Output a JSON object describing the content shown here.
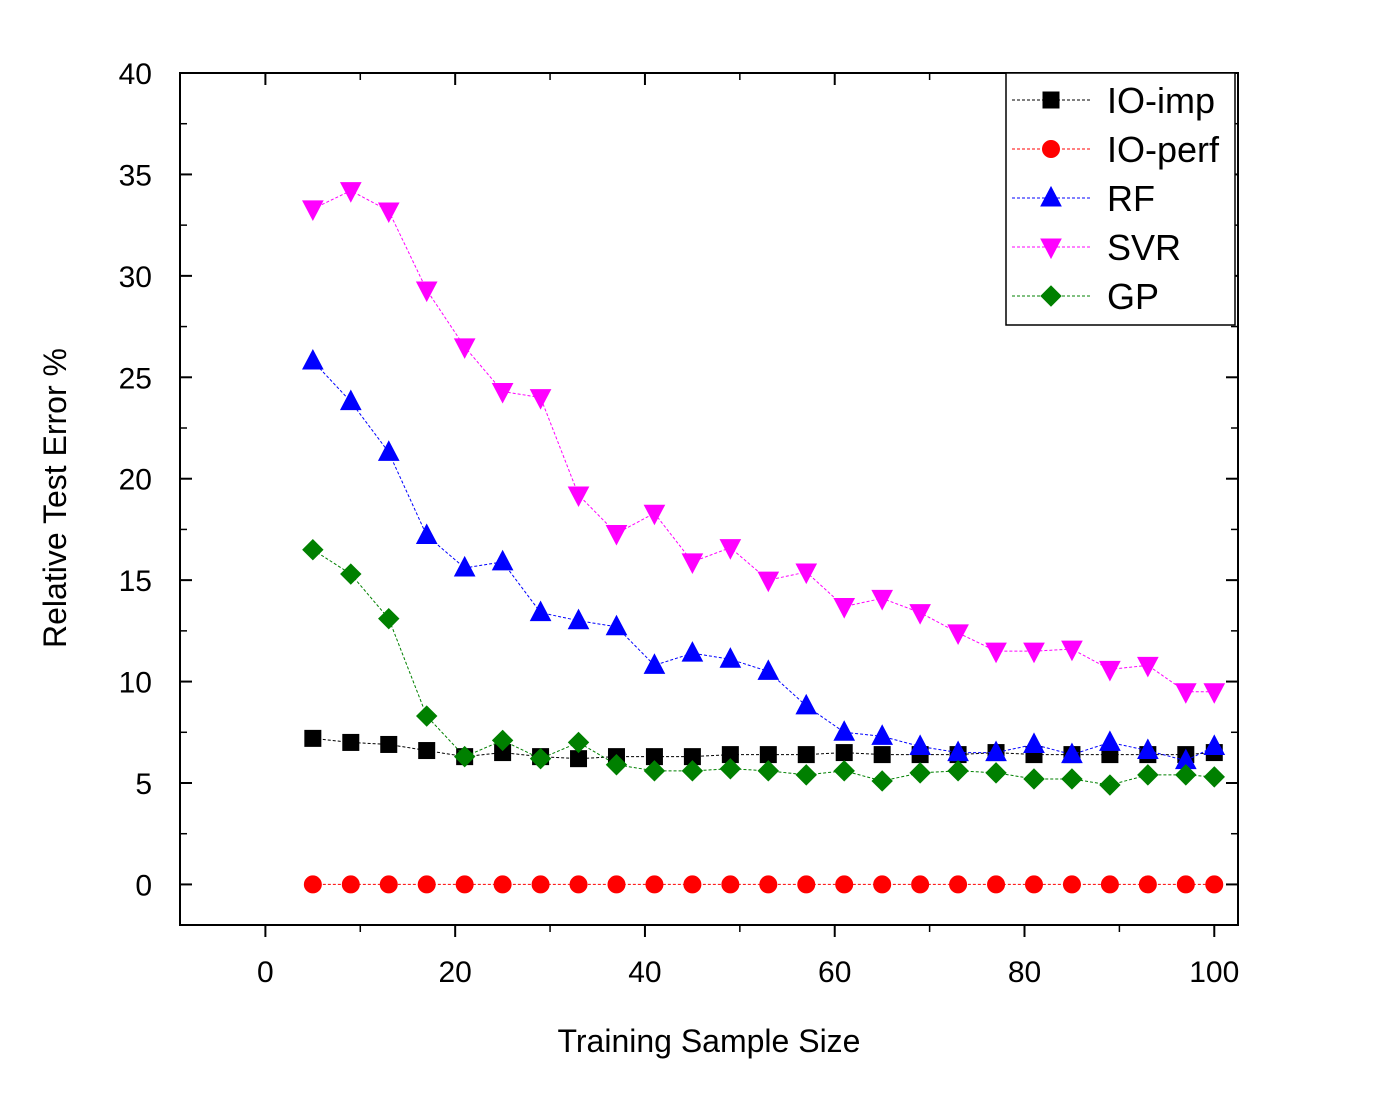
{
  "chart_data": {
    "type": "line",
    "title": "",
    "xlabel": "Training Sample Size",
    "ylabel": "Relative Test Error %",
    "xlim": [
      -9,
      102.5
    ],
    "ylim": [
      -2,
      40
    ],
    "xticks": [
      0,
      20,
      40,
      60,
      80,
      100
    ],
    "yticks": [
      0,
      5,
      10,
      15,
      20,
      25,
      30,
      35,
      40
    ],
    "x": [
      5,
      9,
      13,
      17,
      21,
      25,
      29,
      33,
      37,
      41,
      45,
      49,
      53,
      57,
      61,
      65,
      69,
      73,
      77,
      81,
      85,
      89,
      93,
      97,
      100
    ],
    "legend_position": "top-right",
    "series": [
      {
        "name": "IO-imp",
        "color": "#000000",
        "marker": "square",
        "values": [
          7.2,
          7.0,
          6.9,
          6.6,
          6.3,
          6.5,
          6.3,
          6.2,
          6.3,
          6.3,
          6.3,
          6.4,
          6.4,
          6.4,
          6.5,
          6.4,
          6.4,
          6.4,
          6.5,
          6.4,
          6.4,
          6.4,
          6.4,
          6.4,
          6.5
        ]
      },
      {
        "name": "IO-perf",
        "color": "#ff0000",
        "marker": "circle",
        "values": [
          0,
          0,
          0,
          0,
          0,
          0,
          0,
          0,
          0,
          0,
          0,
          0,
          0,
          0,
          0,
          0,
          0,
          0,
          0,
          0,
          0,
          0,
          0,
          0,
          0
        ]
      },
      {
        "name": "RF",
        "color": "#0000ff",
        "marker": "triangle-up",
        "values": [
          25.8,
          23.8,
          21.3,
          17.2,
          15.6,
          15.9,
          13.4,
          13.0,
          12.7,
          10.8,
          11.4,
          11.1,
          10.5,
          8.8,
          7.5,
          7.3,
          6.8,
          6.5,
          6.5,
          6.9,
          6.4,
          7.0,
          6.6,
          6.1,
          6.8
        ]
      },
      {
        "name": "SVR",
        "color": "#ff00ff",
        "marker": "triangle-down",
        "values": [
          33.3,
          34.2,
          33.2,
          29.3,
          26.5,
          24.3,
          24.0,
          19.2,
          17.3,
          18.3,
          15.9,
          16.6,
          15.0,
          15.4,
          13.7,
          14.1,
          13.4,
          12.4,
          11.5,
          11.5,
          11.6,
          10.6,
          10.8,
          9.5,
          9.5
        ]
      },
      {
        "name": "GP",
        "color": "#008000",
        "marker": "diamond",
        "values": [
          16.5,
          15.3,
          13.1,
          8.3,
          6.3,
          7.1,
          6.2,
          7.0,
          5.9,
          5.6,
          5.6,
          5.7,
          5.6,
          5.4,
          5.6,
          5.1,
          5.5,
          5.6,
          5.5,
          5.2,
          5.2,
          4.9,
          5.4,
          5.4,
          5.3
        ]
      }
    ]
  }
}
